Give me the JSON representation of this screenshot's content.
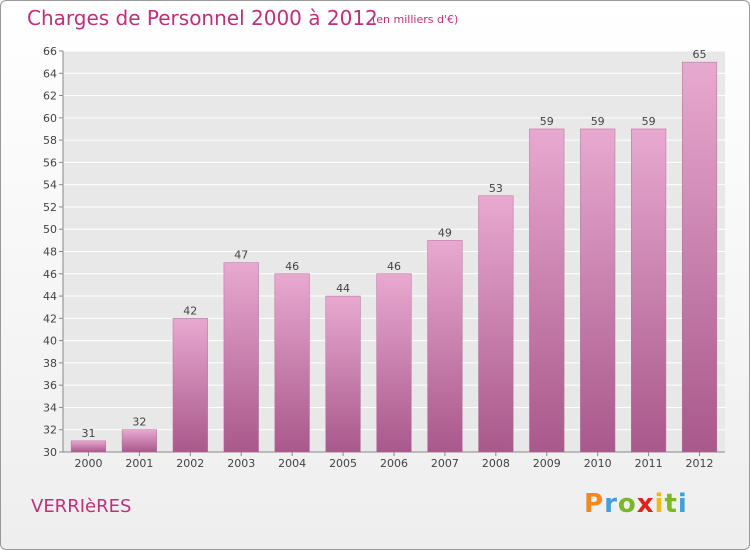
{
  "title": "Charges de Personnel 2000 à 2012",
  "subtitle": "(en milliers d'€)",
  "town": "VERRIèRES",
  "logo": {
    "letters": [
      "P",
      "r",
      "o",
      "x",
      "i",
      "t",
      "i"
    ],
    "colors": [
      "#f08a1c",
      "#3fa0dd",
      "#7ab829",
      "#e2231a",
      "#f2b619",
      "#7ab829",
      "#3fa0dd"
    ]
  },
  "colors": {
    "bar": "#cc6fa8",
    "bar_light": "#e8a9d0",
    "bar_dark": "#a9588b",
    "text": "#c0307a"
  },
  "chart_data": {
    "type": "bar",
    "categories": [
      "2000",
      "2001",
      "2002",
      "2003",
      "2004",
      "2005",
      "2006",
      "2007",
      "2008",
      "2009",
      "2010",
      "2011",
      "2012"
    ],
    "values": [
      31,
      32,
      42,
      47,
      46,
      44,
      46,
      49,
      53,
      59,
      59,
      59,
      65
    ],
    "ylim": [
      30,
      66
    ],
    "yticks": [
      30,
      32,
      34,
      36,
      38,
      40,
      42,
      44,
      46,
      48,
      50,
      52,
      54,
      56,
      58,
      60,
      62,
      64,
      66
    ],
    "grid": true,
    "data_labels": true,
    "xlabel": "",
    "ylabel": ""
  }
}
